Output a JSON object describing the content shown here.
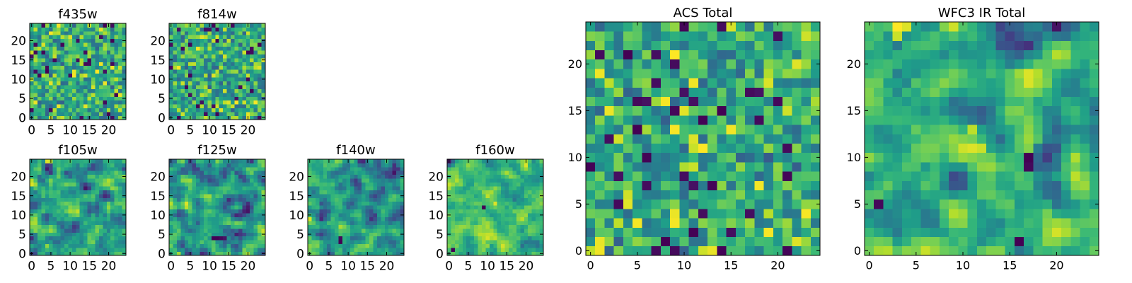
{
  "chart_data": [
    {
      "id": "f435w",
      "type": "heatmap",
      "title": "f435w",
      "xlabel": "",
      "ylabel": "",
      "xlim": [
        0,
        24
      ],
      "ylim": [
        0,
        24
      ],
      "grid": false,
      "colormap": "viridis",
      "nx": 25,
      "ny": 25,
      "value_range": [
        0,
        1
      ],
      "seed": 11,
      "smooth": 0,
      "xticks": [
        0,
        5,
        10,
        15,
        20
      ],
      "yticks": [
        0,
        5,
        10,
        15,
        20
      ],
      "hotspots": []
    },
    {
      "id": "f814w",
      "type": "heatmap",
      "title": "f814w",
      "xlabel": "",
      "ylabel": "",
      "xlim": [
        0,
        24
      ],
      "ylim": [
        0,
        24
      ],
      "grid": false,
      "colormap": "viridis",
      "nx": 25,
      "ny": 25,
      "value_range": [
        0,
        1
      ],
      "seed": 27,
      "smooth": 0,
      "xticks": [
        0,
        5,
        10,
        15,
        20
      ],
      "yticks": [
        0,
        5,
        10,
        15,
        20
      ],
      "hotspots": [
        {
          "x": 11,
          "y": 11,
          "value": 0.95
        },
        {
          "x": 12,
          "y": 12,
          "value": 0.9
        }
      ]
    },
    {
      "id": "f105w",
      "type": "heatmap",
      "title": "f105w",
      "xlabel": "",
      "ylabel": "",
      "xlim": [
        0,
        24
      ],
      "ylim": [
        0,
        24
      ],
      "grid": false,
      "colormap": "viridis",
      "nx": 25,
      "ny": 25,
      "value_range": [
        0,
        1
      ],
      "seed": 41,
      "smooth": 1,
      "xticks": [
        0,
        5,
        10,
        15,
        20
      ],
      "yticks": [
        0,
        5,
        10,
        15,
        20
      ],
      "hotspots": [
        {
          "x": 4,
          "y": 24,
          "value": 0.95
        },
        {
          "x": 5,
          "y": 24,
          "value": 0.9
        }
      ]
    },
    {
      "id": "f125w",
      "type": "heatmap",
      "title": "f125w",
      "xlabel": "",
      "ylabel": "",
      "xlim": [
        0,
        24
      ],
      "ylim": [
        0,
        24
      ],
      "grid": false,
      "colormap": "viridis",
      "nx": 25,
      "ny": 25,
      "value_range": [
        0,
        1
      ],
      "seed": 53,
      "smooth": 1,
      "xticks": [
        0,
        5,
        10,
        15,
        20
      ],
      "yticks": [
        0,
        5,
        10,
        15,
        20
      ],
      "hotspots": [
        {
          "x": 11,
          "y": 4,
          "value": 0.0
        },
        {
          "x": 12,
          "y": 4,
          "value": 0.0
        },
        {
          "x": 13,
          "y": 4,
          "value": 0.02
        },
        {
          "x": 14,
          "y": 4,
          "value": 0.05
        }
      ]
    },
    {
      "id": "f140w",
      "type": "heatmap",
      "title": "f140w",
      "xlabel": "",
      "ylabel": "",
      "xlim": [
        0,
        24
      ],
      "ylim": [
        0,
        24
      ],
      "grid": false,
      "colormap": "viridis",
      "nx": 25,
      "ny": 25,
      "value_range": [
        0,
        1
      ],
      "seed": 67,
      "smooth": 1,
      "xticks": [
        0,
        5,
        10,
        15,
        20
      ],
      "yticks": [
        0,
        5,
        10,
        15,
        20
      ],
      "hotspots": [
        {
          "x": 8,
          "y": 3,
          "value": 0.0
        },
        {
          "x": 8,
          "y": 4,
          "value": 0.02
        }
      ]
    },
    {
      "id": "f160w",
      "type": "heatmap",
      "title": "f160w",
      "xlabel": "",
      "ylabel": "",
      "xlim": [
        0,
        24
      ],
      "ylim": [
        0,
        24
      ],
      "grid": false,
      "colormap": "viridis",
      "nx": 25,
      "ny": 25,
      "value_range": [
        0,
        1
      ],
      "seed": 79,
      "smooth": 1,
      "xticks": [
        0,
        5,
        10,
        15,
        20
      ],
      "yticks": [
        0,
        5,
        10,
        15,
        20
      ],
      "hotspots": [
        {
          "x": 1,
          "y": 1,
          "value": 0.0
        },
        {
          "x": 9,
          "y": 12,
          "value": 0.0
        },
        {
          "x": 12,
          "y": 13,
          "value": 0.95
        }
      ]
    },
    {
      "id": "acs-total",
      "type": "heatmap",
      "title": "ACS Total",
      "xlabel": "",
      "ylabel": "",
      "xlim": [
        0,
        24
      ],
      "ylim": [
        0,
        24
      ],
      "grid": false,
      "colormap": "viridis",
      "nx": 25,
      "ny": 25,
      "value_range": [
        0,
        1
      ],
      "seed": 91,
      "smooth": 0,
      "xticks": [
        0,
        5,
        10,
        15,
        20
      ],
      "yticks": [
        0,
        5,
        10,
        15,
        20
      ],
      "hotspots": [
        {
          "x": 11,
          "y": 12,
          "value": 0.95
        },
        {
          "x": 12,
          "y": 11,
          "value": 1.0
        },
        {
          "x": 11,
          "y": 11,
          "value": 0.92
        },
        {
          "x": 4,
          "y": 21,
          "value": 0.0
        },
        {
          "x": 5,
          "y": 13,
          "value": 0.0
        },
        {
          "x": 14,
          "y": 15,
          "value": 0.0
        },
        {
          "x": 8,
          "y": 1,
          "value": 0.0
        },
        {
          "x": 1,
          "y": 0,
          "value": 0.98
        }
      ]
    },
    {
      "id": "wfc3-ir-total",
      "type": "heatmap",
      "title": "WFC3 IR Total",
      "xlabel": "",
      "ylabel": "",
      "xlim": [
        0,
        24
      ],
      "ylim": [
        0,
        24
      ],
      "grid": false,
      "colormap": "viridis",
      "nx": 25,
      "ny": 25,
      "value_range": [
        0,
        1
      ],
      "seed": 103,
      "smooth": 1,
      "xticks": [
        0,
        5,
        10,
        15,
        20
      ],
      "yticks": [
        0,
        5,
        10,
        15,
        20
      ],
      "hotspots": [
        {
          "x": 3,
          "y": 24,
          "value": 1.0
        },
        {
          "x": 4,
          "y": 24,
          "value": 0.95
        },
        {
          "x": 3,
          "y": 23,
          "value": 0.92
        },
        {
          "x": 11,
          "y": 11,
          "value": 0.95
        },
        {
          "x": 12,
          "y": 11,
          "value": 0.92
        },
        {
          "x": 11,
          "y": 13,
          "value": 0.9
        },
        {
          "x": 17,
          "y": 10,
          "value": 0.0
        },
        {
          "x": 17,
          "y": 9,
          "value": 0.02
        },
        {
          "x": 16,
          "y": 1,
          "value": 0.0
        },
        {
          "x": 1,
          "y": 5,
          "value": 0.02
        }
      ]
    }
  ]
}
